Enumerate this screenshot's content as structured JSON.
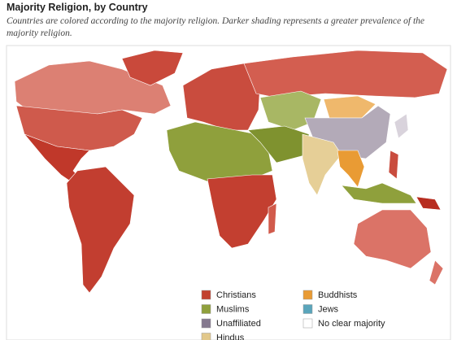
{
  "header": {
    "title": "Majority Religion, by Country",
    "subtitle": "Countries are colored according to the majority religion. Darker shading represents a greater prevalence of the majority religion."
  },
  "legend": {
    "items": [
      {
        "label": "Christians",
        "color": "#c2412f"
      },
      {
        "label": "Muslims",
        "color": "#8fa03c"
      },
      {
        "label": "Unaffiliated",
        "color": "#85798f"
      },
      {
        "label": "Hindus",
        "color": "#e2c88b"
      },
      {
        "label": "Buddhists",
        "color": "#e99b34"
      },
      {
        "label": "Jews",
        "color": "#5aa5bb"
      },
      {
        "label": "No clear majority",
        "color": "#ffffff"
      }
    ]
  }
}
